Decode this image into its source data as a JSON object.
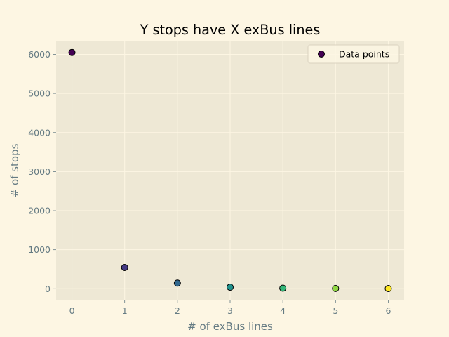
{
  "chart_data": {
    "type": "scatter",
    "title": "Y stops have X exBus lines",
    "xlabel": "# of exBus lines",
    "ylabel": "# of stops",
    "xlim": [
      -0.3,
      6.3
    ],
    "ylim": [
      -300,
      6350
    ],
    "xticks": [
      0,
      1,
      2,
      3,
      4,
      5,
      6
    ],
    "yticks": [
      0,
      1000,
      2000,
      3000,
      4000,
      5000,
      6000
    ],
    "grid": true,
    "legend": {
      "position": "top-right",
      "entries": [
        "Data points"
      ]
    },
    "series": [
      {
        "name": "Data points",
        "x": [
          0,
          1,
          2,
          3,
          4,
          5,
          6
        ],
        "y": [
          6050,
          545,
          145,
          40,
          15,
          8,
          5
        ],
        "colors": [
          "#440154",
          "#443983",
          "#31688e",
          "#21918c",
          "#35b779",
          "#90d743",
          "#fde725"
        ]
      }
    ],
    "colors": {
      "figure_bg": "#fdf6e3",
      "plot_bg": "#eee8d5",
      "grid": "#fdf6e3",
      "tick_text": "#657b83",
      "marker_edge": "#000000"
    }
  }
}
